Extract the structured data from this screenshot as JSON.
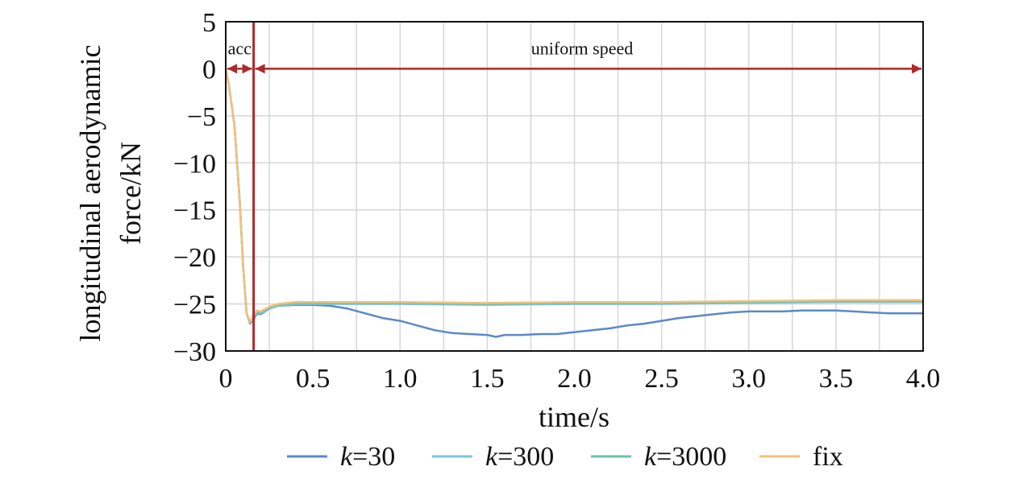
{
  "chart_data": {
    "type": "line",
    "xlabel": "time/s",
    "ylabel_lines": [
      "longitudinal aerodynamic",
      "force/kN"
    ],
    "xlim": [
      0,
      4.0
    ],
    "ylim": [
      -30,
      5
    ],
    "xticks": [
      0,
      0.5,
      1.0,
      1.5,
      2.0,
      2.5,
      3.0,
      3.5,
      4.0
    ],
    "xtick_labels": [
      "0",
      "0.5",
      "1.0",
      "1.5",
      "2.0",
      "2.5",
      "3.0",
      "3.5",
      "4.0"
    ],
    "yticks": [
      5,
      0,
      -5,
      -10,
      -15,
      -20,
      -25,
      -30
    ],
    "ytick_labels": [
      "5",
      "0",
      "−5",
      "−10",
      "−15",
      "−20",
      "−25",
      "−30"
    ],
    "grid": true,
    "legend_position": "bottom",
    "phase_boundary_x": 0.16,
    "annotations": {
      "acc": "acc",
      "uniform": "uniform speed"
    },
    "annotation_arrow_y": 0,
    "series": [
      {
        "name": "k=30",
        "legend_italic": "k",
        "legend_rest": "=30",
        "color": "#5b88c8",
        "x": [
          0,
          0.02,
          0.05,
          0.08,
          0.1,
          0.12,
          0.14,
          0.16,
          0.18,
          0.2,
          0.25,
          0.3,
          0.4,
          0.5,
          0.6,
          0.7,
          0.8,
          0.9,
          1.0,
          1.1,
          1.2,
          1.3,
          1.4,
          1.5,
          1.55,
          1.6,
          1.7,
          1.8,
          1.9,
          2.0,
          2.1,
          2.2,
          2.3,
          2.4,
          2.5,
          2.6,
          2.7,
          2.8,
          2.9,
          3.0,
          3.1,
          3.2,
          3.3,
          3.4,
          3.5,
          3.6,
          3.7,
          3.8,
          3.9,
          4.0
        ],
        "y": [
          0,
          -2,
          -6,
          -14,
          -21,
          -26,
          -27.1,
          -26.6,
          -26.0,
          -26.1,
          -25.5,
          -25.2,
          -25.1,
          -25.1,
          -25.2,
          -25.5,
          -26.0,
          -26.5,
          -26.8,
          -27.3,
          -27.8,
          -28.1,
          -28.2,
          -28.3,
          -28.5,
          -28.3,
          -28.3,
          -28.2,
          -28.2,
          -28.0,
          -27.8,
          -27.6,
          -27.3,
          -27.1,
          -26.8,
          -26.5,
          -26.3,
          -26.1,
          -25.9,
          -25.8,
          -25.8,
          -25.8,
          -25.7,
          -25.7,
          -25.7,
          -25.8,
          -25.9,
          -26.0,
          -26.0,
          -26.0
        ]
      },
      {
        "name": "k=300",
        "legend_italic": "k",
        "legend_rest": "=300",
        "color": "#7fc4e0",
        "x": [
          0,
          0.02,
          0.05,
          0.08,
          0.1,
          0.12,
          0.14,
          0.16,
          0.18,
          0.2,
          0.25,
          0.3,
          0.4,
          0.5,
          0.7,
          1.0,
          1.5,
          2.0,
          2.5,
          3.0,
          3.5,
          4.0
        ],
        "y": [
          0,
          -2,
          -6,
          -14,
          -21,
          -26,
          -27.0,
          -26.4,
          -25.9,
          -26.0,
          -25.5,
          -25.2,
          -25.0,
          -25.0,
          -25.0,
          -25.0,
          -25.1,
          -25.0,
          -25.0,
          -24.9,
          -24.8,
          -24.8
        ]
      },
      {
        "name": "k=3000",
        "legend_italic": "k",
        "legend_rest": "=3000",
        "color": "#6cc2a8",
        "x": [
          0,
          0.02,
          0.05,
          0.08,
          0.1,
          0.12,
          0.14,
          0.16,
          0.18,
          0.2,
          0.25,
          0.3,
          0.4,
          0.5,
          0.7,
          1.0,
          1.5,
          2.0,
          2.5,
          3.0,
          3.5,
          4.0
        ],
        "y": [
          0,
          -2,
          -6,
          -14,
          -21,
          -26,
          -27.0,
          -26.3,
          -25.8,
          -25.9,
          -25.4,
          -25.1,
          -24.9,
          -24.9,
          -24.9,
          -24.9,
          -25.0,
          -24.9,
          -24.9,
          -24.8,
          -24.7,
          -24.7
        ]
      },
      {
        "name": "fix",
        "legend_italic": "",
        "legend_rest": "fix",
        "color": "#f2c07a",
        "x": [
          0,
          0.02,
          0.05,
          0.08,
          0.1,
          0.12,
          0.14,
          0.16,
          0.18,
          0.2,
          0.25,
          0.3,
          0.4,
          0.5,
          0.7,
          1.0,
          1.5,
          2.0,
          2.5,
          3.0,
          3.5,
          4.0
        ],
        "y": [
          0,
          -2,
          -6,
          -14,
          -21,
          -26,
          -26.9,
          -26.2,
          -25.7,
          -25.8,
          -25.3,
          -25.0,
          -24.8,
          -24.8,
          -24.8,
          -24.8,
          -24.9,
          -24.8,
          -24.8,
          -24.7,
          -24.6,
          -24.6
        ]
      }
    ],
    "boundary_color": "#b0282a"
  }
}
